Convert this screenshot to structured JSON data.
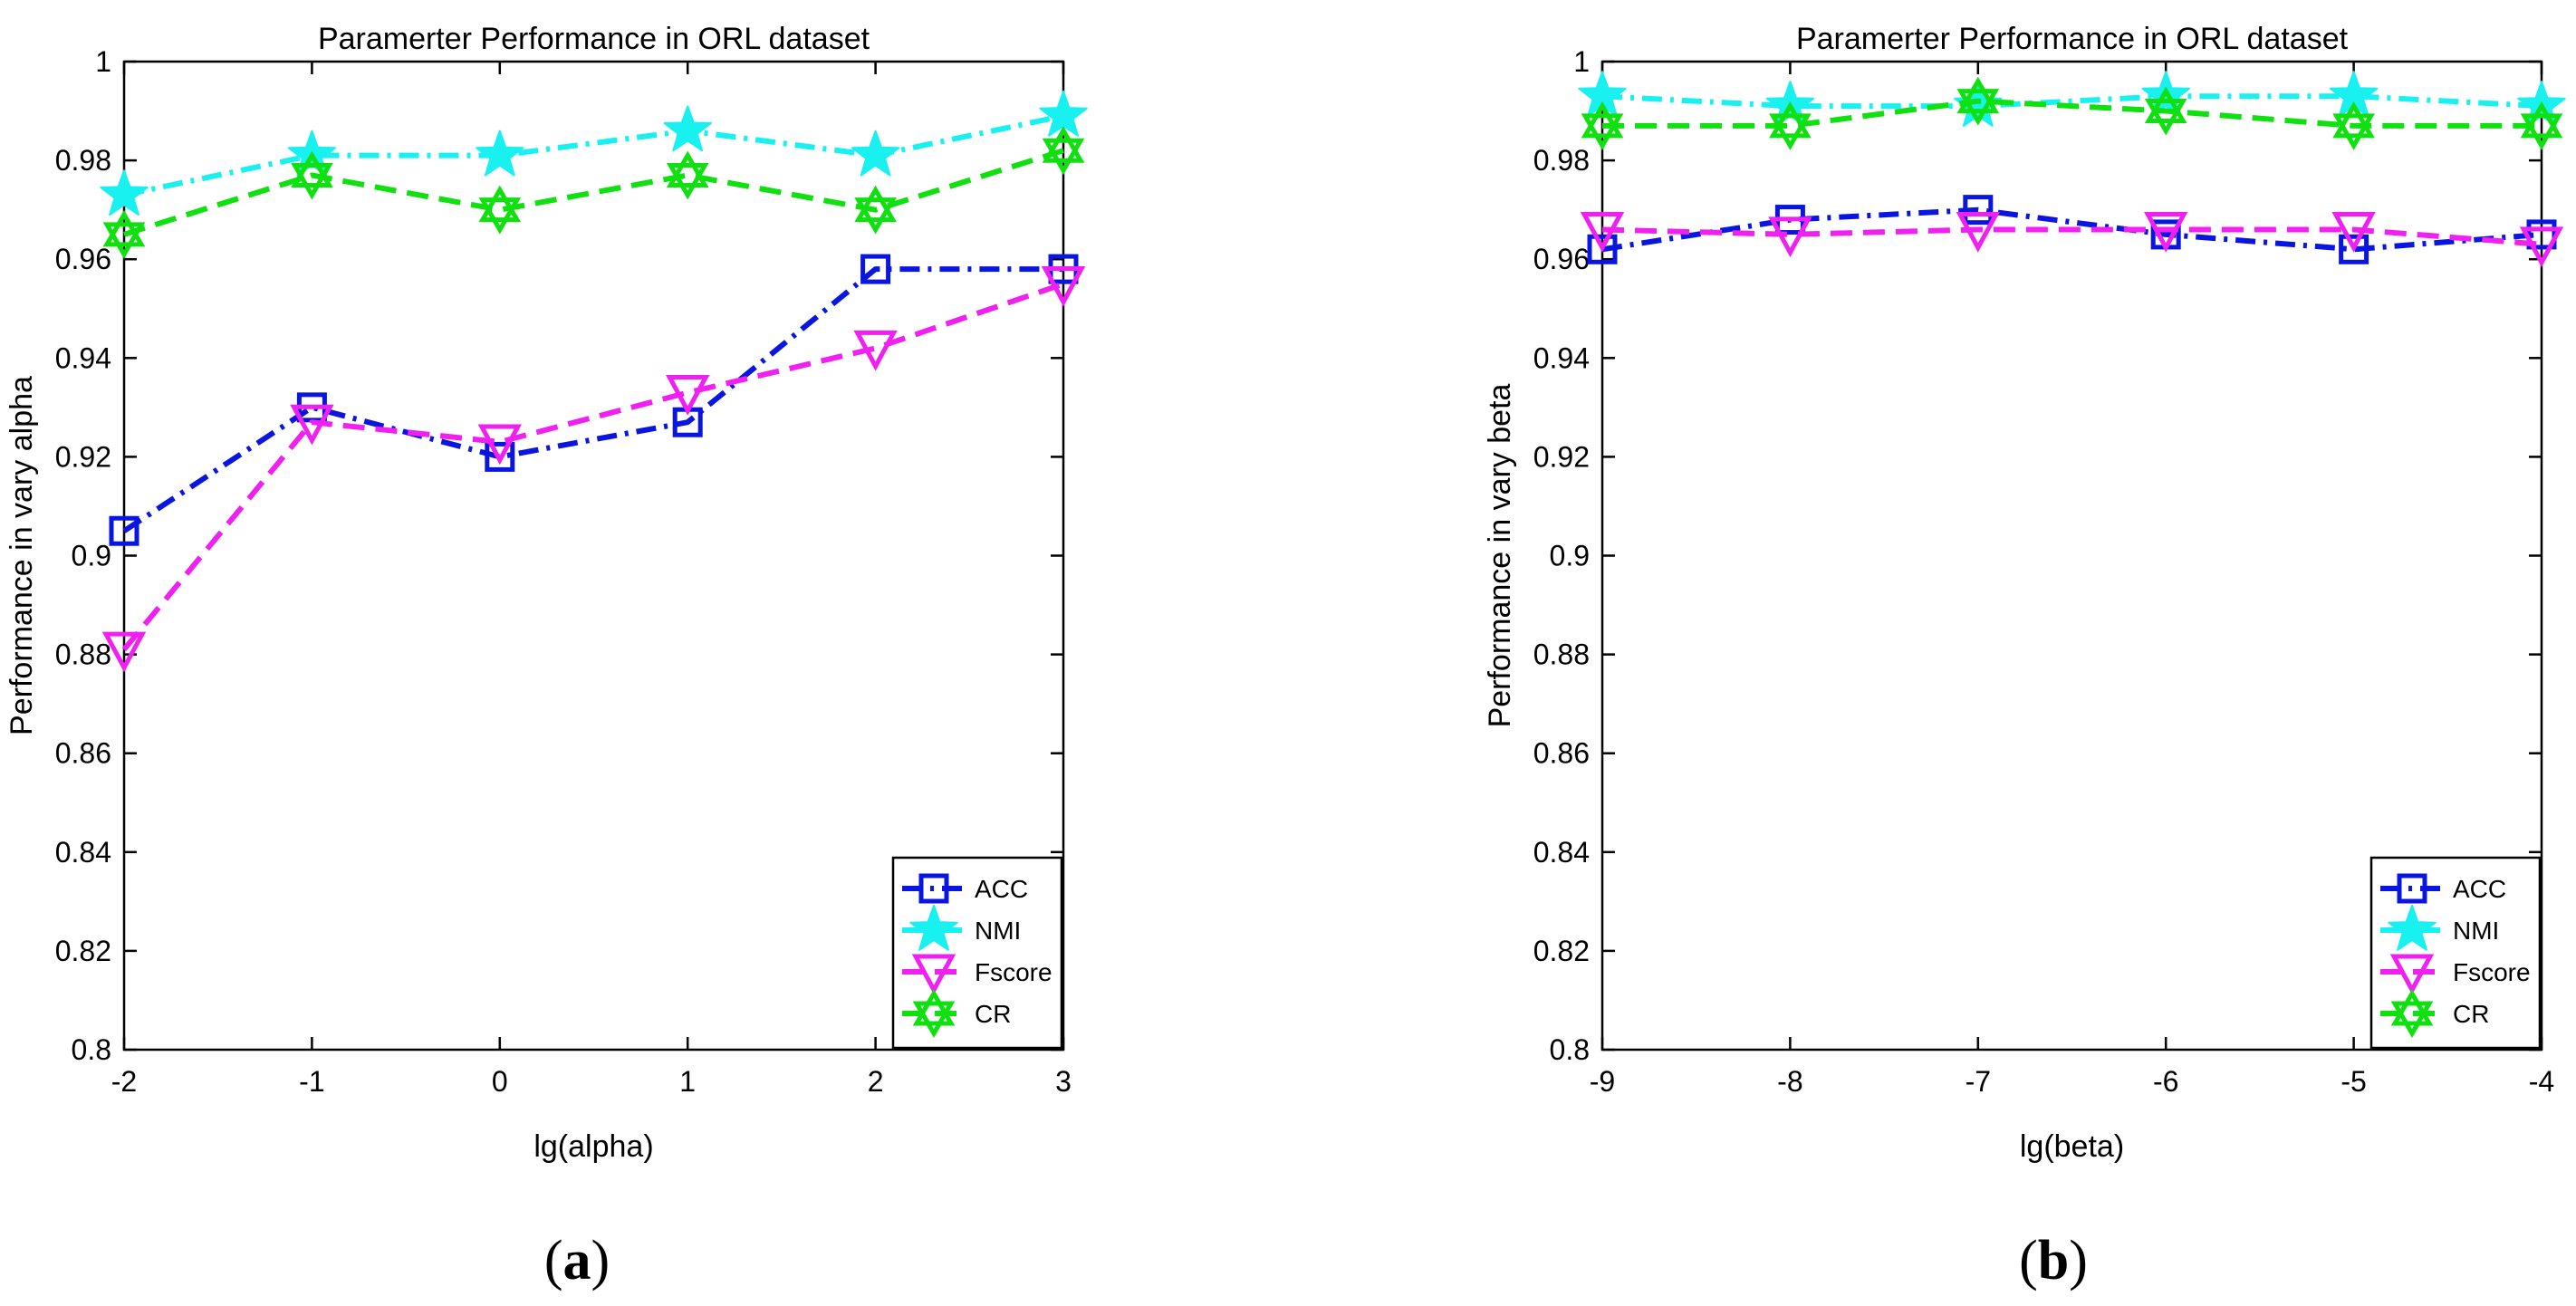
{
  "figure": {
    "captions": [
      "(a)",
      "(b)"
    ]
  },
  "series_style": [
    {
      "name": "ACC",
      "color": "#0b15e0",
      "marker": "square-icon",
      "dash": "dashdot"
    },
    {
      "name": "NMI",
      "color": "#19f0f0",
      "marker": "star-icon",
      "dash": "dashdot"
    },
    {
      "name": "Fscore",
      "color": "#f020f0",
      "marker": "triangle-down-icon",
      "dash": "dashed"
    },
    {
      "name": "CR",
      "color": "#10e010",
      "marker": "hexagram-icon",
      "dash": "dashed"
    }
  ],
  "chart_data": [
    {
      "type": "line",
      "title": "Paramerter Performance in ORL dataset",
      "xlabel": "lg(alpha)",
      "ylabel": "Performance in vary alpha",
      "x": [
        -2,
        -1,
        0,
        1,
        2,
        3
      ],
      "xticks": [
        "-2",
        "-1",
        "0",
        "1",
        "2",
        "3"
      ],
      "xlim": [
        -2,
        3
      ],
      "ylim": [
        0.8,
        1
      ],
      "yticks": [
        "0.8",
        "0.82",
        "0.84",
        "0.86",
        "0.88",
        "0.9",
        "0.92",
        "0.94",
        "0.96",
        "0.98",
        "1"
      ],
      "legend_position": "bottom-right",
      "series": [
        {
          "name": "ACC",
          "values": [
            0.905,
            0.93,
            0.92,
            0.927,
            0.958,
            0.958
          ]
        },
        {
          "name": "NMI",
          "values": [
            0.973,
            0.981,
            0.981,
            0.986,
            0.981,
            0.989
          ]
        },
        {
          "name": "Fscore",
          "values": [
            0.881,
            0.927,
            0.923,
            0.933,
            0.942,
            0.955
          ]
        },
        {
          "name": "CR",
          "values": [
            0.965,
            0.977,
            0.97,
            0.977,
            0.97,
            0.982
          ]
        }
      ]
    },
    {
      "type": "line",
      "title": "Paramerter Performance in ORL dataset",
      "xlabel": "lg(beta)",
      "ylabel": "Performance in vary beta",
      "x": [
        -9,
        -8,
        -7,
        -6,
        -5,
        -4
      ],
      "xticks": [
        "-9",
        "-8",
        "-7",
        "-6",
        "-5",
        "-4"
      ],
      "xlim": [
        -9,
        -4
      ],
      "ylim": [
        0.8,
        1
      ],
      "yticks": [
        "0.8",
        "0.82",
        "0.84",
        "0.86",
        "0.88",
        "0.9",
        "0.92",
        "0.94",
        "0.96",
        "0.98",
        "1"
      ],
      "legend_position": "bottom-right",
      "series": [
        {
          "name": "ACC",
          "values": [
            0.962,
            0.968,
            0.97,
            0.965,
            0.962,
            0.965
          ]
        },
        {
          "name": "NMI",
          "values": [
            0.993,
            0.991,
            0.991,
            0.993,
            0.993,
            0.991
          ]
        },
        {
          "name": "Fscore",
          "values": [
            0.966,
            0.965,
            0.966,
            0.966,
            0.966,
            0.963
          ]
        },
        {
          "name": "CR",
          "values": [
            0.987,
            0.987,
            0.992,
            0.99,
            0.987,
            0.987
          ]
        }
      ]
    }
  ]
}
